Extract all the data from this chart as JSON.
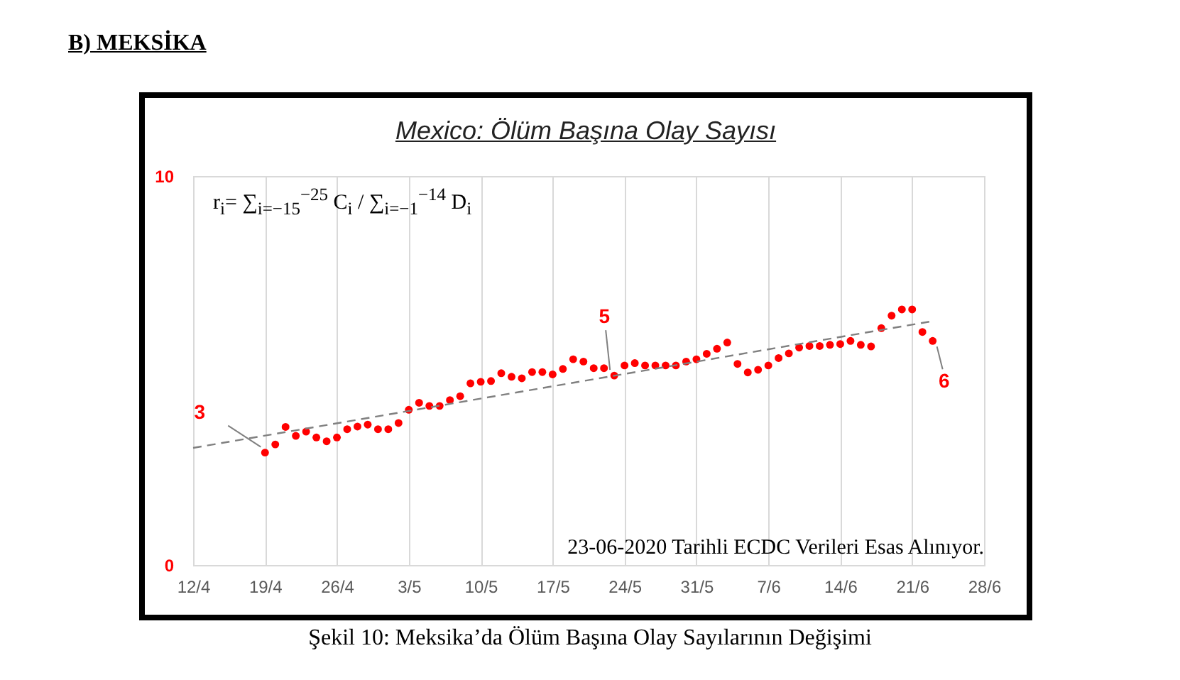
{
  "chart_data": {
    "type": "scatter",
    "title": "Mexico: Ölüm Başına Olay Sayısı",
    "annotations": [
      "B)  MEKSİKA",
      "r$_{i}$= ∑$_{i=−15}$$^{−25}$ C$_{i}$ / ∑$_{i=−1}$$^{−14}$ D$_{i}$",
      "23-06-2020 Tarihli ECDC Verileri Esas Alınıyor.",
      "Şekil 10: Meksika’da Ölüm Başına Olay Sayılarının Değişimi",
      {
        "text": "3",
        "x": "2020-04-19",
        "y": 2.89
      },
      {
        "text": "5",
        "x": "2020-05-23",
        "y": 4.87
      },
      {
        "text": "6",
        "x": "2020-06-23",
        "y": 5.76
      }
    ],
    "series": [
      {
        "type": "scatter",
        "color": "#ff0000",
        "marker": "circle",
        "x": [
          "2020-04-19",
          "2020-04-20",
          "2020-04-21",
          "2020-04-22",
          "2020-04-23",
          "2020-04-24",
          "2020-04-25",
          "2020-04-26",
          "2020-04-27",
          "2020-04-28",
          "2020-04-29",
          "2020-04-30",
          "2020-05-01",
          "2020-05-02",
          "2020-05-03",
          "2020-05-04",
          "2020-05-05",
          "2020-05-06",
          "2020-05-07",
          "2020-05-08",
          "2020-05-09",
          "2020-05-10",
          "2020-05-11",
          "2020-05-12",
          "2020-05-13",
          "2020-05-14",
          "2020-05-15",
          "2020-05-16",
          "2020-05-17",
          "2020-05-18",
          "2020-05-19",
          "2020-05-20",
          "2020-05-21",
          "2020-05-22",
          "2020-05-23",
          "2020-05-24",
          "2020-05-25",
          "2020-05-26",
          "2020-05-27",
          "2020-05-28",
          "2020-05-29",
          "2020-05-30",
          "2020-05-31",
          "2020-06-01",
          "2020-06-02",
          "2020-06-03",
          "2020-06-04",
          "2020-06-05",
          "2020-06-06",
          "2020-06-07",
          "2020-06-08",
          "2020-06-09",
          "2020-06-10",
          "2020-06-11",
          "2020-06-12",
          "2020-06-13",
          "2020-06-14",
          "2020-06-15",
          "2020-06-16",
          "2020-06-17",
          "2020-06-18",
          "2020-06-19",
          "2020-06-20",
          "2020-06-21",
          "2020-06-22",
          "2020-06-23"
        ],
        "values": [
          2.89,
          3.1,
          3.55,
          3.32,
          3.43,
          3.28,
          3.18,
          3.28,
          3.49,
          3.56,
          3.61,
          3.49,
          3.49,
          3.65,
          3.99,
          4.17,
          4.09,
          4.09,
          4.24,
          4.34,
          4.67,
          4.71,
          4.73,
          4.93,
          4.84,
          4.8,
          4.96,
          4.96,
          4.9,
          5.04,
          5.29,
          5.23,
          5.06,
          5.06,
          4.87,
          5.13,
          5.19,
          5.13,
          5.13,
          5.13,
          5.13,
          5.23,
          5.29,
          5.43,
          5.56,
          5.72,
          5.17,
          4.95,
          5.02,
          5.13,
          5.32,
          5.44,
          5.59,
          5.63,
          5.63,
          5.66,
          5.68,
          5.76,
          5.66,
          5.62,
          6.09,
          6.41,
          6.57,
          6.57,
          5.99,
          5.76
        ]
      },
      {
        "type": "line",
        "color": "#808080",
        "line_style": "dashed",
        "marker": "none",
        "x": [
          "2020-04-12",
          "2020-06-23"
        ],
        "values": [
          3.01,
          6.27
        ]
      }
    ],
    "xlim": [
      "2020-04-12",
      "2020-06-28"
    ],
    "xticks": [
      {
        "value": "2020-04-12",
        "label": "12/4"
      },
      {
        "value": "2020-04-19",
        "label": "19/4"
      },
      {
        "value": "2020-04-26",
        "label": "26/4"
      },
      {
        "value": "2020-05-03",
        "label": "3/5"
      },
      {
        "value": "2020-05-10",
        "label": "10/5"
      },
      {
        "value": "2020-05-17",
        "label": "17/5"
      },
      {
        "value": "2020-05-24",
        "label": "24/5"
      },
      {
        "value": "2020-05-31",
        "label": "31/5"
      },
      {
        "value": "2020-06-07",
        "label": "7/6"
      },
      {
        "value": "2020-06-14",
        "label": "14/6"
      },
      {
        "value": "2020-06-21",
        "label": "21/6"
      },
      {
        "value": "2020-06-28",
        "label": "28/6"
      }
    ],
    "ylim": [
      0,
      10
    ],
    "yticks": [
      0,
      10
    ],
    "grid": "x"
  }
}
